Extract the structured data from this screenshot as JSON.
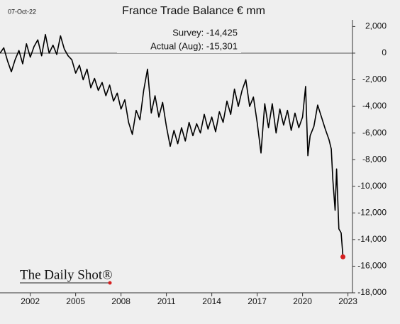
{
  "chart_data": {
    "type": "line",
    "title": "France Trade Balance € mm",
    "date": "07-Oct-22",
    "annotations": [
      "Survey:  -14,425",
      "Actual (Aug):  -15,301"
    ],
    "source": "The Daily Shot®",
    "xlim": [
      2000,
      2023.3
    ],
    "xticks": [
      2002,
      2005,
      2008,
      2011,
      2014,
      2017,
      2020,
      2023
    ],
    "ylim": [
      -18000,
      2500
    ],
    "yticks": [
      {
        "value": 2000,
        "label": "2,000"
      },
      0,
      {
        "value": -2000,
        "label": "-2,000"
      },
      {
        "value": -4000,
        "label": "-4,000"
      },
      {
        "value": -6000,
        "label": "-6,000"
      },
      {
        "value": -8000,
        "label": "-8,000"
      },
      {
        "value": -10000,
        "label": "-10,000"
      },
      {
        "value": -12000,
        "label": "-12,000"
      },
      {
        "value": -14000,
        "label": "-14,000"
      },
      {
        "value": -16000,
        "label": "-16,000"
      },
      {
        "value": -18000,
        "label": "-18,000"
      }
    ],
    "x": [
      2000.0,
      2000.25,
      2000.5,
      2000.75,
      2001.0,
      2001.25,
      2001.5,
      2001.75,
      2002.0,
      2002.25,
      2002.5,
      2002.75,
      2003.0,
      2003.25,
      2003.5,
      2003.75,
      2004.0,
      2004.25,
      2004.5,
      2004.75,
      2005.0,
      2005.25,
      2005.5,
      2005.75,
      2006.0,
      2006.25,
      2006.5,
      2006.75,
      2007.0,
      2007.25,
      2007.5,
      2007.75,
      2008.0,
      2008.25,
      2008.5,
      2008.75,
      2009.0,
      2009.25,
      2009.5,
      2009.75,
      2010.0,
      2010.25,
      2010.5,
      2010.75,
      2011.0,
      2011.25,
      2011.5,
      2011.75,
      2012.0,
      2012.25,
      2012.5,
      2012.75,
      2013.0,
      2013.25,
      2013.5,
      2013.75,
      2014.0,
      2014.25,
      2014.5,
      2014.75,
      2015.0,
      2015.25,
      2015.5,
      2015.75,
      2016.0,
      2016.25,
      2016.5,
      2016.75,
      2017.0,
      2017.25,
      2017.5,
      2017.75,
      2018.0,
      2018.25,
      2018.5,
      2018.75,
      2019.0,
      2019.25,
      2019.5,
      2019.75,
      2020.0,
      2020.2,
      2020.35,
      2020.5,
      2020.75,
      2021.0,
      2021.25,
      2021.5,
      2021.75,
      2021.9,
      2022.0,
      2022.15,
      2022.25,
      2022.4,
      2022.55,
      2022.67
    ],
    "series": [
      {
        "name": "Trade balance",
        "color": "#000000",
        "values": [
          0,
          400,
          -600,
          -1400,
          -500,
          200,
          -800,
          700,
          -300,
          500,
          1000,
          -200,
          1400,
          0,
          600,
          -100,
          1300,
          300,
          -200,
          -500,
          -1500,
          -900,
          -2000,
          -1200,
          -2600,
          -1900,
          -2800,
          -2200,
          -3200,
          -2400,
          -3600,
          -3000,
          -4200,
          -3500,
          -5200,
          -6100,
          -4300,
          -5000,
          -2800,
          -1200,
          -4500,
          -3200,
          -4800,
          -3700,
          -5500,
          -7000,
          -5800,
          -6800,
          -5600,
          -6600,
          -5200,
          -6200,
          -5300,
          -6000,
          -4600,
          -5700,
          -4800,
          -5900,
          -4400,
          -5200,
          -3600,
          -4600,
          -2700,
          -4000,
          -2800,
          -2000,
          -4000,
          -3300,
          -5200,
          -7500,
          -3800,
          -5600,
          -3800,
          -6000,
          -4200,
          -5400,
          -4300,
          -5800,
          -4500,
          -5600,
          -4800,
          -2500,
          -7700,
          -6200,
          -5500,
          -3900,
          -4800,
          -5700,
          -6500,
          -7200,
          -9500,
          -11800,
          -8700,
          -13200,
          -13500,
          -15301
        ]
      }
    ],
    "marker_color": "#d62020"
  }
}
